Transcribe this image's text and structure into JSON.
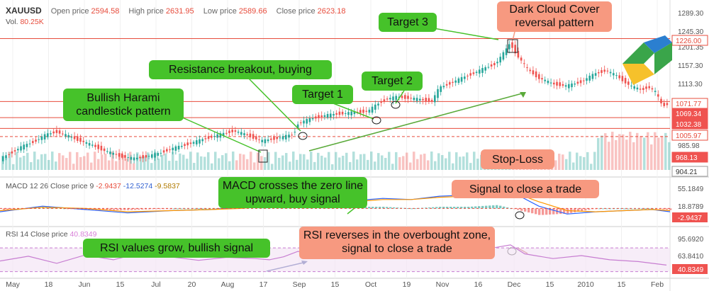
{
  "header": {
    "symbol": "XAUUSD",
    "open_label": "Open price",
    "open_value": "2594.58",
    "high_label": "High price",
    "high_value": "2631.95",
    "low_label": "Low price",
    "low_value": "2589.66",
    "close_label": "Close price",
    "close_value": "2623.18",
    "vol_label": "Vol.",
    "vol_value": "80.25K"
  },
  "macd_header": {
    "label": "MACD 12 26 Close price 9",
    "v1": "-2.9437",
    "v2": "-12.5274",
    "v3": "-9.5837"
  },
  "rsi_header": {
    "label": "RSI 14 Close price",
    "v1": "40.8349"
  },
  "annotations": {
    "bullish_harami": "Bullish Harami candlestick pattern",
    "resistance": "Resistance breakout, buying",
    "target1": "Target 1",
    "target2": "Target 2",
    "target3": "Target 3",
    "dark_cloud": "Dark Cloud Cover reversal pattern",
    "stop_loss": "Stop-Loss",
    "macd_cross": "MACD crosses the zero line upward, buy signal",
    "signal_close": "Signal to close a trade",
    "rsi_grow": "RSI values grow, bullish signal",
    "rsi_reverse": "RSI reverses in the overbought zone, signal to close a trade"
  },
  "colors": {
    "up": "#26a69a",
    "down": "#ef5350",
    "level_line": "#e74c3c",
    "green_box": "#46c22a",
    "salmon_box": "#f79980",
    "macd": "#2962ff",
    "signal": "#ff9800",
    "rsi": "#c77dd1"
  },
  "chart_data": {
    "type": "candlestick",
    "x_ticks": [
      "May",
      "18",
      "Jun",
      "15",
      "Jul",
      "20",
      "Aug",
      "17",
      "Sep",
      "15",
      "Oct",
      "19",
      "Nov",
      "16",
      "Dec",
      "15",
      "2010",
      "15",
      "Feb"
    ],
    "price_axis_labels": [
      "1289.30",
      "1245.30",
      "1201.35",
      "1157.30",
      "1113.30",
      "1069.34",
      "1032.38",
      "985.98",
      "904.21"
    ],
    "price_badges": [
      {
        "value": "1226.00",
        "kind": "outline"
      },
      {
        "value": "1071.77",
        "kind": "outline"
      },
      {
        "value": "1069.34",
        "kind": "filled"
      },
      {
        "value": "1032.38",
        "kind": "filled"
      },
      {
        "value": "1005.97",
        "kind": "outline"
      },
      {
        "value": "968.13",
        "kind": "filled"
      },
      {
        "value": "904.21",
        "kind": "dark"
      }
    ],
    "horizontal_levels": [
      1226.0,
      1071.77,
      1032.38,
      1005.97,
      985.98
    ],
    "close_path": [
      [
        0,
        930
      ],
      [
        15,
        945
      ],
      [
        30,
        960
      ],
      [
        50,
        975
      ],
      [
        65,
        990
      ],
      [
        80,
        998
      ],
      [
        100,
        985
      ],
      [
        115,
        975
      ],
      [
        130,
        965
      ],
      [
        150,
        950
      ],
      [
        170,
        938
      ],
      [
        190,
        932
      ],
      [
        210,
        938
      ],
      [
        225,
        945
      ],
      [
        240,
        955
      ],
      [
        255,
        962
      ],
      [
        270,
        970
      ],
      [
        285,
        978
      ],
      [
        300,
        986
      ],
      [
        320,
        995
      ],
      [
        330,
        1000
      ],
      [
        345,
        992
      ],
      [
        360,
        982
      ],
      [
        370,
        975
      ],
      [
        385,
        980
      ],
      [
        400,
        985
      ],
      [
        415,
        992
      ],
      [
        420,
        1018
      ],
      [
        440,
        1030
      ],
      [
        460,
        1038
      ],
      [
        480,
        1042
      ],
      [
        500,
        1045
      ],
      [
        520,
        1048
      ],
      [
        530,
        1062
      ],
      [
        545,
        1078
      ],
      [
        560,
        1083
      ],
      [
        580,
        1080
      ],
      [
        600,
        1075
      ],
      [
        610,
        1073
      ],
      [
        620,
        1105
      ],
      [
        640,
        1120
      ],
      [
        660,
        1135
      ],
      [
        680,
        1150
      ],
      [
        700,
        1165
      ],
      [
        715,
        1200
      ],
      [
        720,
        1215
      ],
      [
        730,
        1185
      ],
      [
        745,
        1150
      ],
      [
        760,
        1130
      ],
      [
        780,
        1115
      ],
      [
        800,
        1110
      ],
      [
        820,
        1120
      ],
      [
        840,
        1140
      ],
      [
        855,
        1148
      ],
      [
        870,
        1135
      ],
      [
        890,
        1110
      ],
      [
        905,
        1100
      ],
      [
        915,
        1108
      ],
      [
        925,
        1095
      ],
      [
        935,
        1060
      ],
      [
        945,
        1069
      ]
    ],
    "macd_axis_labels": [
      "55.1849",
      "18.8789",
      "-2.9437"
    ],
    "rsi_axis_labels": [
      "95.6920",
      "63.8410",
      "40.8349"
    ],
    "rsi_overbought": 70,
    "rsi_oversold": 30,
    "rsi_path": [
      [
        0,
        48
      ],
      [
        40,
        56
      ],
      [
        80,
        44
      ],
      [
        120,
        58
      ],
      [
        160,
        50
      ],
      [
        200,
        62
      ],
      [
        240,
        55
      ],
      [
        280,
        49
      ],
      [
        320,
        54
      ],
      [
        360,
        52
      ],
      [
        380,
        50
      ],
      [
        400,
        55
      ],
      [
        420,
        64
      ],
      [
        460,
        60
      ],
      [
        500,
        66
      ],
      [
        530,
        70
      ],
      [
        560,
        63
      ],
      [
        600,
        61
      ],
      [
        620,
        67
      ],
      [
        660,
        69
      ],
      [
        700,
        71
      ],
      [
        720,
        75
      ],
      [
        740,
        60
      ],
      [
        780,
        52
      ],
      [
        820,
        57
      ],
      [
        860,
        50
      ],
      [
        900,
        47
      ],
      [
        940,
        41
      ]
    ],
    "macd_path": [
      [
        0,
        -3
      ],
      [
        60,
        2
      ],
      [
        120,
        -1
      ],
      [
        180,
        -4
      ],
      [
        240,
        -2
      ],
      [
        300,
        -1
      ],
      [
        340,
        1
      ],
      [
        380,
        3
      ],
      [
        420,
        5
      ],
      [
        460,
        6
      ],
      [
        500,
        7
      ],
      [
        540,
        9
      ],
      [
        580,
        8
      ],
      [
        620,
        11
      ],
      [
        660,
        12
      ],
      [
        700,
        14
      ],
      [
        730,
        12
      ],
      [
        760,
        2
      ],
      [
        800,
        -5
      ],
      [
        840,
        -3
      ],
      [
        880,
        -2
      ],
      [
        920,
        -1
      ],
      [
        945,
        -3
      ]
    ],
    "signal_path": [
      [
        0,
        -2
      ],
      [
        60,
        1
      ],
      [
        120,
        0
      ],
      [
        180,
        -3
      ],
      [
        240,
        -2
      ],
      [
        300,
        -1
      ],
      [
        340,
        0
      ],
      [
        380,
        2
      ],
      [
        420,
        4
      ],
      [
        460,
        5
      ],
      [
        500,
        6
      ],
      [
        540,
        8
      ],
      [
        580,
        8
      ],
      [
        620,
        10
      ],
      [
        660,
        11
      ],
      [
        700,
        12
      ],
      [
        730,
        13
      ],
      [
        760,
        6
      ],
      [
        800,
        -2
      ],
      [
        840,
        -3
      ],
      [
        880,
        -2
      ],
      [
        920,
        -1
      ],
      [
        945,
        -2
      ]
    ]
  }
}
